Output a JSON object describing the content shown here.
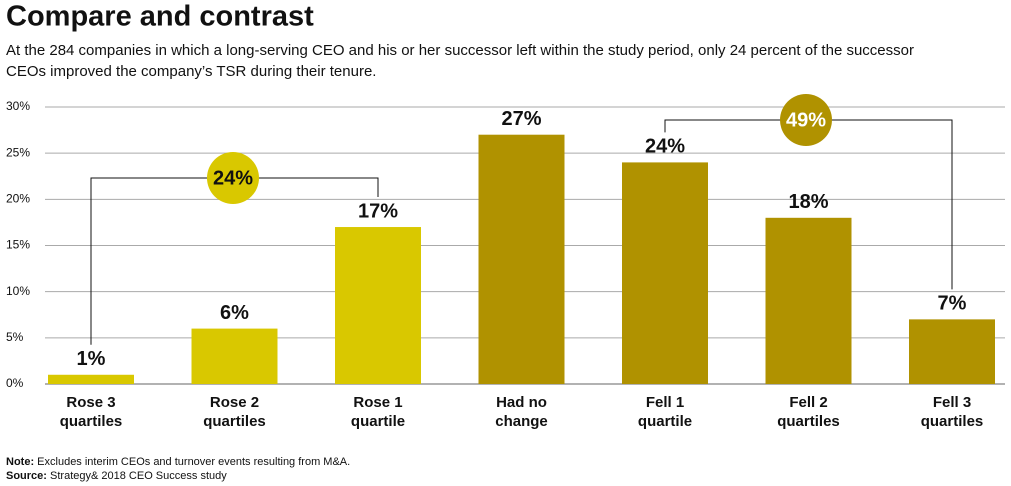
{
  "chart_data": {
    "type": "bar",
    "title": "Compare and contrast",
    "subtitle": [
      "At the 284 companies in which a long-serving CEO and his or her successor left within the study period, only 24 percent of the successor",
      "CEOs improved the company’s TSR during their tenure."
    ],
    "categories": [
      [
        "Rose 3",
        "quartiles"
      ],
      [
        "Rose 2",
        "quartiles"
      ],
      [
        "Rose 1",
        "quartile"
      ],
      [
        "Had no",
        "change"
      ],
      [
        "Fell 1",
        "quartile"
      ],
      [
        "Fell 2",
        "quartiles"
      ],
      [
        "Fell 3",
        "quartiles"
      ]
    ],
    "values": [
      1,
      6,
      17,
      27,
      24,
      18,
      7
    ],
    "value_labels": [
      "1%",
      "6%",
      "17%",
      "27%",
      "24%",
      "18%",
      "7%"
    ],
    "colors": [
      "#d9c800",
      "#d9c800",
      "#d9c800",
      "#b09200",
      "#b09200",
      "#b09200",
      "#b09200"
    ],
    "ylim": [
      0,
      30
    ],
    "yticks": [
      {
        "value": 0,
        "label": "0%"
      },
      {
        "value": 5,
        "label": "5%"
      },
      {
        "value": 10,
        "label": "10%"
      },
      {
        "value": 15,
        "label": "15%"
      },
      {
        "value": 20,
        "label": "20%"
      },
      {
        "value": 25,
        "label": "25%"
      },
      {
        "value": 30,
        "label": "30%"
      }
    ],
    "grid": true,
    "annotations": [
      {
        "text": "24%",
        "color": "#d9c800"
      },
      {
        "text": "49%",
        "color": "#b09200"
      }
    ],
    "note_label": "Note:",
    "note": "Excludes interim CEOs and turnover events resulting from M&A.",
    "source_label": "Source:",
    "source": "Strategy& 2018 CEO Success study"
  }
}
